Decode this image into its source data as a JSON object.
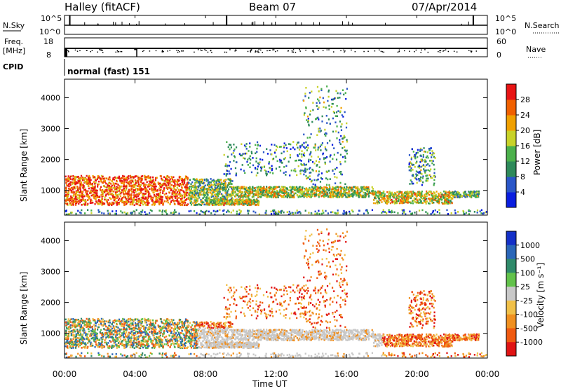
{
  "header": {
    "station": "Halley (fitACF)",
    "beam": "Beam 07",
    "date": "07/Apr/2014"
  },
  "nsky_panel": {
    "left_label": "N.Sky",
    "right_label": "N.Search",
    "tick_top": "10^5",
    "tick_bottom": "10^0",
    "right_tick_top": "10^5",
    "right_tick_bottom": "10^0"
  },
  "freq_panel": {
    "left_label_line1": "Freq.",
    "left_label_line2": "[MHz]",
    "left_tick_top": "18",
    "left_tick_bottom": "8",
    "right_label": "Nave",
    "right_tick_top": "60",
    "right_tick_bottom": "0"
  },
  "cpid_panel": {
    "label": "CPID",
    "value": "normal (fast) 151"
  },
  "chart_data": [
    {
      "type": "heatmap",
      "name": "power",
      "ylabel": "Slant Range [km]",
      "ylim": [
        200,
        4600
      ],
      "yticks": [
        "1000",
        "2000",
        "3000",
        "4000"
      ],
      "colorbar": {
        "label": "Power [dB]",
        "ticks": [
          "4",
          "8",
          "12",
          "16",
          "20",
          "24",
          "28"
        ],
        "colors": [
          "#0a1ee0",
          "#2a56c8",
          "#2e8a5a",
          "#4bb04b",
          "#c8d228",
          "#f0a000",
          "#f06000",
          "#e81414"
        ]
      }
    },
    {
      "type": "heatmap",
      "name": "velocity",
      "ylabel": "Slant Range [km]",
      "ylim": [
        200,
        4600
      ],
      "yticks": [
        "1000",
        "2000",
        "3000",
        "4000"
      ],
      "xlabel": "Time UT",
      "xticks": [
        "00:00",
        "04:00",
        "08:00",
        "12:00",
        "16:00",
        "20:00",
        "00:00"
      ],
      "colorbar": {
        "label": "Velocity [m s⁻¹]",
        "ticks": [
          "1000",
          "500",
          "100",
          "25",
          "-25",
          "-100",
          "-500",
          "-1000"
        ],
        "colors": [
          "#1430c8",
          "#2a66b8",
          "#2f8a6a",
          "#62c24a",
          "#c8c8c8",
          "#f0c048",
          "#f09020",
          "#f05a10",
          "#e01414"
        ]
      }
    }
  ]
}
